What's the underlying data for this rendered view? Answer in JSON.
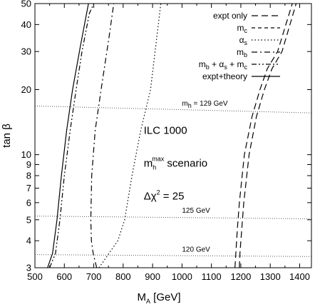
{
  "chart_data": {
    "type": "line",
    "title": "",
    "xlabel": "M",
    "xlabel_sub": "A",
    "xlabel_unit": "[GeV]",
    "ylabel": "tan β",
    "xlim": [
      500,
      1440
    ],
    "ylim": [
      3,
      50
    ],
    "yscale": "log",
    "grid": false,
    "legend_position": "top-right",
    "x_ticks": [
      500,
      600,
      700,
      800,
      900,
      1000,
      1100,
      1200,
      1300,
      1400
    ],
    "x_tick_labels": [
      "500",
      "600",
      "700",
      "800",
      "900",
      "1000",
      "1100",
      "1200",
      "1300",
      "1400"
    ],
    "y_ticks": [
      3,
      4,
      5,
      6,
      7,
      8,
      9,
      10,
      20,
      30,
      40,
      50
    ],
    "y_tick_labels": [
      "3",
      "4",
      "5",
      "6",
      "7",
      "8",
      "9",
      "10",
      "20",
      "30",
      "40",
      "50"
    ],
    "legend": [
      {
        "id": "expt",
        "label": "expt only",
        "style": "long-dash"
      },
      {
        "id": "mc",
        "base": "m",
        "sub": "c",
        "style": "dash"
      },
      {
        "id": "as",
        "base": "α",
        "sub": "s",
        "style": "dot"
      },
      {
        "id": "mb",
        "base": "m",
        "sub": "b",
        "style": "dash-dot"
      },
      {
        "id": "comb",
        "label_parts": [
          {
            "t": "m"
          },
          {
            "t": "b",
            "sub": true
          },
          {
            "t": " + α"
          },
          {
            "t": "s",
            "sub": true
          },
          {
            "t": " + m"
          },
          {
            "t": "c",
            "sub": true
          }
        ],
        "style": "dash-dot-dot"
      },
      {
        "id": "total",
        "label": "expt+theory",
        "style": "solid"
      }
    ],
    "series": [
      {
        "id": "total",
        "style": "solid",
        "segments": [
          {
            "x": [
              543,
              560,
              575,
              590,
              608,
              628,
              655,
              682
            ],
            "y": [
              3,
              3.5,
              5,
              8,
              13,
              20,
              32,
              50
            ]
          }
        ]
      },
      {
        "id": "comb",
        "style": "dash-dot-dot",
        "segments": [
          {
            "x": [
              550,
              570,
              585,
              600,
              620,
              640,
              660,
              685,
              700
            ],
            "y": [
              3,
              3.5,
              5,
              8,
              13,
              20,
              30,
              45,
              50
            ]
          }
        ]
      },
      {
        "id": "mb",
        "style": "dash-dot",
        "segments": [
          {
            "x": [
              710,
              698,
              692,
              690,
              693,
              705,
              725,
              752,
              768
            ],
            "y": [
              3,
              3.5,
              4,
              5,
              8,
              13,
              20,
              35,
              50
            ]
          }
        ]
      },
      {
        "id": "as",
        "style": "dot",
        "segments": [
          {
            "x": [
              718,
              752,
              782,
              805,
              830,
              860,
              893,
              928
            ],
            "y": [
              3,
              3.5,
              4,
              5,
              8,
              13,
              20,
              50
            ]
          }
        ]
      },
      {
        "id": "expt",
        "style": "long-dash",
        "segments": [
          {
            "x": [
              1180,
              1183,
              1188,
              1195,
              1212,
              1238,
              1265,
              1290,
              1325,
              1375
            ],
            "y": [
              3,
              3.5,
              4.5,
              6,
              10,
              15,
              20,
              25,
              30,
              50
            ]
          },
          {
            "x": [
              1195,
              1197,
              1203,
              1210,
              1228,
              1253,
              1280,
              1306,
              1340,
              1388
            ],
            "y": [
              3,
              3.5,
              4.5,
              6,
              10,
              15,
              20,
              25,
              30,
              50
            ]
          }
        ]
      }
    ],
    "mh_contours": [
      {
        "label": "m",
        "label_sub": "h",
        "label_rest": " = 129 GeV",
        "x": [
          500,
          1440
        ],
        "y": [
          16.8,
          15.6
        ],
        "label_x": 1000,
        "label_y": 16.6
      },
      {
        "label": "125 GeV",
        "x": [
          500,
          1440
        ],
        "y": [
          5.2,
          5.05
        ],
        "label_x": 1000,
        "label_y": 5.3
      },
      {
        "label": "120 GeV",
        "x": [
          500,
          1440
        ],
        "y": [
          3.45,
          3.38
        ],
        "label_x": 1000,
        "label_y": 3.5
      }
    ],
    "annotations": [
      {
        "id": "ilc",
        "text": "ILC 1000",
        "x": 870,
        "y": 12.5
      },
      {
        "id": "scenario",
        "base": "m",
        "sub": "h",
        "sup": "max",
        "rest": " scenario",
        "x": 870,
        "y": 8.8
      },
      {
        "id": "chi",
        "pre": "Δχ",
        "sup": "2",
        "rest": " = 25",
        "x": 870,
        "y": 6.2
      }
    ]
  }
}
